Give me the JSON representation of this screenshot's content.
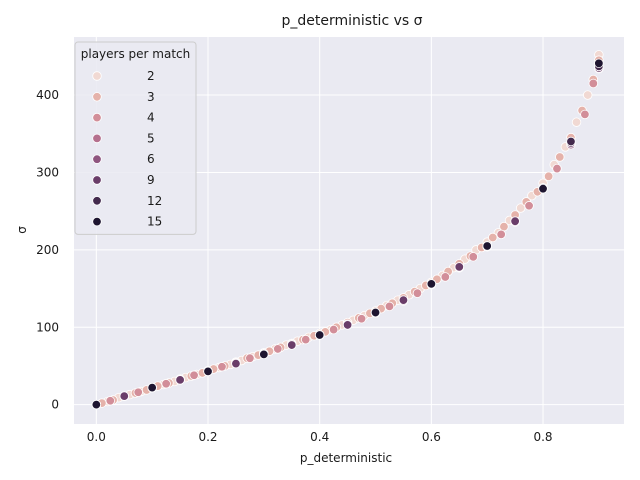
{
  "chart_data": {
    "type": "scatter",
    "title": "p_deterministic vs σ",
    "xlabel": "p_deterministic",
    "ylabel": "σ",
    "xlim": [
      -0.04,
      0.945
    ],
    "ylim": [
      -25,
      475
    ],
    "xticks": [
      0.0,
      0.2,
      0.4,
      0.6,
      0.8
    ],
    "xtick_labels": [
      "0.0",
      "0.2",
      "0.4",
      "0.6",
      "0.8"
    ],
    "yticks": [
      0,
      100,
      200,
      300,
      400
    ],
    "ytick_labels": [
      "0",
      "100",
      "200",
      "300",
      "400"
    ],
    "grid": true,
    "legend": {
      "title": "players per match",
      "position": "upper-left",
      "entries": [
        "2",
        "3",
        "4",
        "5",
        "6",
        "9",
        "12",
        "15"
      ]
    },
    "colors": {
      "background": "#eaeaf2",
      "grid": "#ffffff",
      "2": "#f1d9d3",
      "3": "#e5b2aa",
      "4": "#d28e99",
      "5": "#b5708e",
      "6": "#8f557f",
      "9": "#6a3d69",
      "12": "#432a4d",
      "15": "#1e1530"
    },
    "series": [
      {
        "name": "2",
        "x": [
          0.0,
          0.02,
          0.04,
          0.06,
          0.08,
          0.1,
          0.12,
          0.14,
          0.16,
          0.18,
          0.2,
          0.22,
          0.24,
          0.26,
          0.28,
          0.3,
          0.32,
          0.34,
          0.36,
          0.38,
          0.4,
          0.42,
          0.44,
          0.46,
          0.48,
          0.5,
          0.52,
          0.54,
          0.56,
          0.58,
          0.6,
          0.62,
          0.64,
          0.66,
          0.68,
          0.7,
          0.72,
          0.74,
          0.76,
          0.78,
          0.8,
          0.82,
          0.84,
          0.86,
          0.88,
          0.9
        ],
        "y": [
          0,
          4,
          9,
          13,
          17,
          22,
          26,
          30,
          35,
          39,
          44,
          48,
          52,
          57,
          62,
          67,
          72,
          77,
          82,
          87,
          92,
          97,
          103,
          109,
          115,
          121,
          128,
          135,
          142,
          150,
          158,
          167,
          177,
          188,
          200,
          210,
          222,
          238,
          254,
          270,
          286,
          310,
          333,
          365,
          400,
          452
        ]
      },
      {
        "name": "3",
        "x": [
          0.01,
          0.03,
          0.05,
          0.07,
          0.09,
          0.11,
          0.13,
          0.15,
          0.17,
          0.19,
          0.21,
          0.23,
          0.25,
          0.27,
          0.29,
          0.31,
          0.33,
          0.35,
          0.37,
          0.39,
          0.41,
          0.43,
          0.45,
          0.47,
          0.49,
          0.51,
          0.53,
          0.55,
          0.57,
          0.59,
          0.61,
          0.63,
          0.65,
          0.67,
          0.69,
          0.71,
          0.73,
          0.75,
          0.77,
          0.79,
          0.81,
          0.83,
          0.85,
          0.87,
          0.89,
          0.9
        ],
        "y": [
          2,
          6,
          11,
          15,
          19,
          24,
          28,
          33,
          37,
          41,
          46,
          50,
          55,
          60,
          64,
          69,
          74,
          79,
          84,
          89,
          94,
          100,
          106,
          112,
          118,
          124,
          131,
          138,
          146,
          154,
          162,
          172,
          182,
          192,
          203,
          216,
          230,
          245,
          262,
          275,
          295,
          320,
          345,
          380,
          420,
          445
        ]
      },
      {
        "name": "4",
        "x": [
          0.0,
          0.025,
          0.05,
          0.075,
          0.1,
          0.125,
          0.15,
          0.175,
          0.2,
          0.225,
          0.25,
          0.275,
          0.3,
          0.325,
          0.35,
          0.375,
          0.4,
          0.425,
          0.45,
          0.475,
          0.5,
          0.525,
          0.55,
          0.575,
          0.6,
          0.625,
          0.65,
          0.675,
          0.7,
          0.725,
          0.75,
          0.775,
          0.8,
          0.825,
          0.85,
          0.875,
          0.89,
          0.9
        ],
        "y": [
          0,
          5,
          11,
          16,
          22,
          27,
          32,
          38,
          43,
          49,
          54,
          60,
          66,
          72,
          78,
          84,
          90,
          97,
          104,
          111,
          119,
          127,
          135,
          144,
          155,
          165,
          177,
          191,
          205,
          220,
          237,
          257,
          280,
          305,
          338,
          375,
          415,
          440
        ]
      },
      {
        "name": "5",
        "x": [
          0.0,
          0.05,
          0.1,
          0.15,
          0.2,
          0.25,
          0.3,
          0.35,
          0.4,
          0.45,
          0.5,
          0.55,
          0.6,
          0.65,
          0.7,
          0.75,
          0.8,
          0.85,
          0.9
        ],
        "y": [
          0,
          11,
          22,
          32,
          43,
          54,
          66,
          78,
          90,
          104,
          119,
          135,
          155,
          177,
          205,
          237,
          280,
          338,
          436
        ]
      },
      {
        "name": "6",
        "x": [
          0.0,
          0.05,
          0.1,
          0.15,
          0.2,
          0.25,
          0.3,
          0.35,
          0.4,
          0.45,
          0.5,
          0.55,
          0.6,
          0.65,
          0.7,
          0.75,
          0.8,
          0.85,
          0.9
        ],
        "y": [
          0,
          11,
          22,
          32,
          43,
          54,
          66,
          78,
          90,
          103,
          118,
          134,
          156,
          177,
          204,
          236,
          280,
          336,
          434
        ]
      },
      {
        "name": "9",
        "x": [
          0.0,
          0.05,
          0.1,
          0.15,
          0.2,
          0.25,
          0.3,
          0.35,
          0.4,
          0.45,
          0.5,
          0.55,
          0.6,
          0.65,
          0.7,
          0.75,
          0.8,
          0.85,
          0.9
        ],
        "y": [
          0,
          11,
          22,
          32,
          43,
          53,
          65,
          77,
          90,
          103,
          119,
          135,
          156,
          178,
          205,
          237,
          279,
          338,
          435
        ]
      },
      {
        "name": "12",
        "x": [
          0.0,
          0.1,
          0.2,
          0.3,
          0.4,
          0.5,
          0.6,
          0.7,
          0.8,
          0.85,
          0.9
        ],
        "y": [
          0,
          22,
          43,
          65,
          90,
          119,
          156,
          205,
          280,
          340,
          437
        ]
      },
      {
        "name": "15",
        "x": [
          0.0,
          0.1,
          0.2,
          0.3,
          0.4,
          0.5,
          0.6,
          0.7,
          0.8,
          0.9
        ],
        "y": [
          0,
          22,
          43,
          65,
          90,
          119,
          156,
          205,
          279,
          441
        ]
      }
    ]
  }
}
